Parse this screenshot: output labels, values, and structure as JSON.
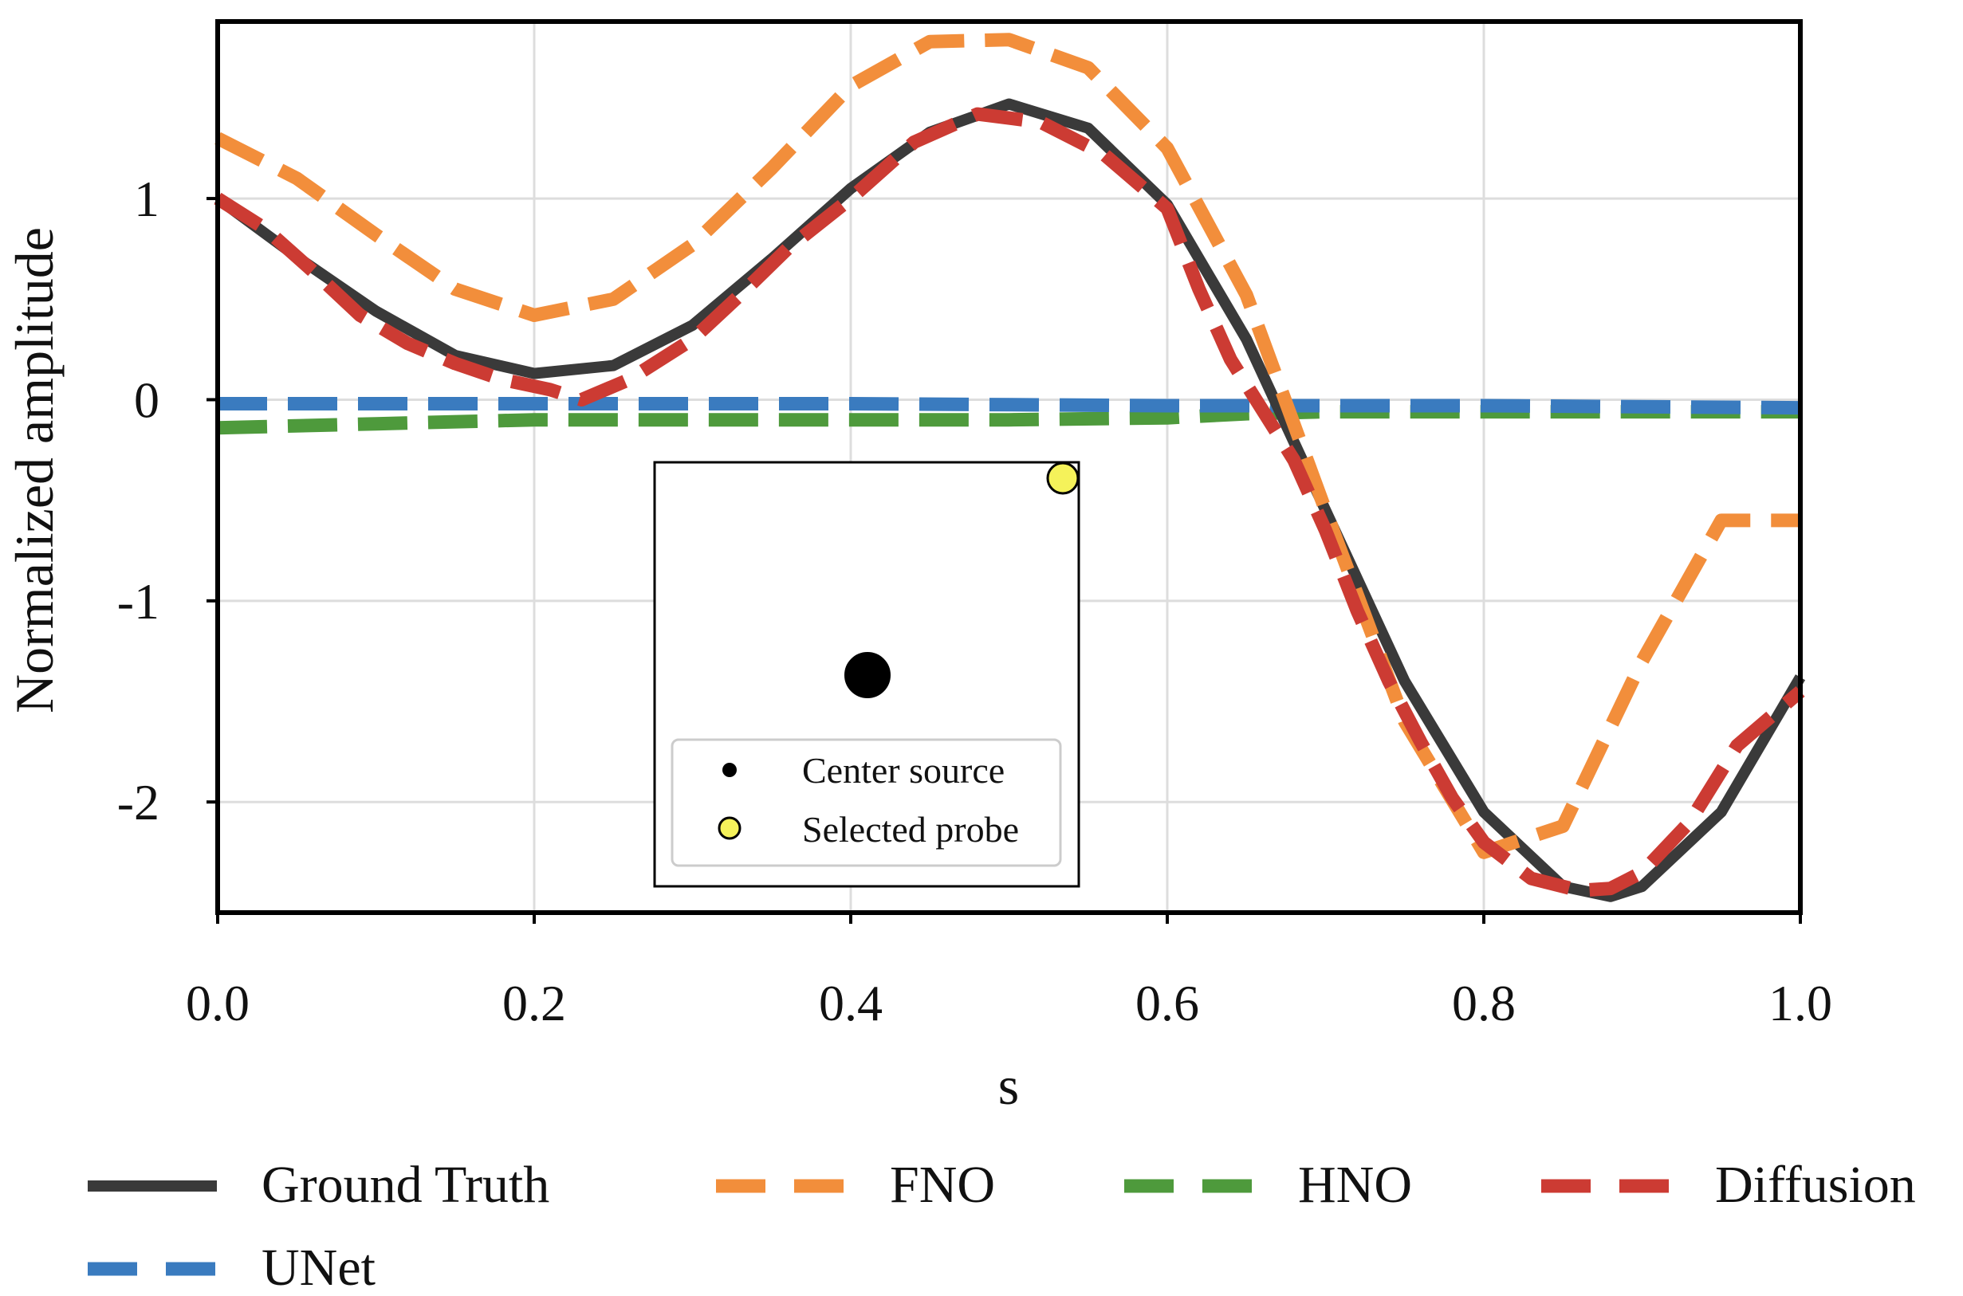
{
  "chart_data": {
    "type": "line",
    "xlabel": "s",
    "ylabel": "Normalized amplitude",
    "xlim": [
      0.0,
      1.0
    ],
    "ylim": [
      -2.55,
      1.88
    ],
    "xticks": [
      0.0,
      0.2,
      0.4,
      0.6,
      0.8,
      1.0
    ],
    "xtick_labels": [
      "0.0",
      "0.2",
      "0.4",
      "0.6",
      "0.8",
      "1.0"
    ],
    "yticks": [
      1,
      0,
      -1,
      -2
    ],
    "ytick_labels": [
      "1",
      "0",
      "-1",
      "-2"
    ],
    "grid": true,
    "legend_position": "bottom, outside plot area",
    "series": [
      {
        "name": "Ground Truth",
        "color": "#3a3a3a",
        "style": "solid",
        "x": [
          0.0,
          0.05,
          0.1,
          0.15,
          0.2,
          0.25,
          0.3,
          0.35,
          0.4,
          0.45,
          0.5,
          0.55,
          0.6,
          0.65,
          0.7,
          0.75,
          0.8,
          0.85,
          0.88,
          0.9,
          0.95,
          1.0
        ],
        "y": [
          1.0,
          0.71,
          0.44,
          0.22,
          0.13,
          0.17,
          0.37,
          0.7,
          1.05,
          1.33,
          1.47,
          1.35,
          0.97,
          0.3,
          -0.55,
          -1.4,
          -2.05,
          -2.42,
          -2.47,
          -2.42,
          -2.05,
          -1.38
        ]
      },
      {
        "name": "FNO",
        "color": "#f28e3b",
        "style": "dashed",
        "x": [
          0.0,
          0.05,
          0.1,
          0.15,
          0.2,
          0.25,
          0.3,
          0.35,
          0.4,
          0.45,
          0.5,
          0.55,
          0.6,
          0.65,
          0.7,
          0.75,
          0.8,
          0.85,
          0.9,
          0.95,
          1.0
        ],
        "y": [
          1.3,
          1.1,
          0.82,
          0.55,
          0.42,
          0.5,
          0.77,
          1.15,
          1.56,
          1.78,
          1.79,
          1.65,
          1.25,
          0.52,
          -0.55,
          -1.6,
          -2.25,
          -2.12,
          -1.3,
          -0.6,
          -0.6
        ]
      },
      {
        "name": "HNO",
        "color": "#4e9a3c",
        "style": "dashed",
        "x": [
          0.0,
          0.1,
          0.2,
          0.3,
          0.4,
          0.5,
          0.6,
          0.65,
          0.7,
          0.8,
          0.9,
          1.0
        ],
        "y": [
          -0.14,
          -0.12,
          -0.1,
          -0.1,
          -0.1,
          -0.1,
          -0.09,
          -0.07,
          -0.06,
          -0.06,
          -0.06,
          -0.06
        ]
      },
      {
        "name": "Diffusion",
        "color": "#cc3b33",
        "style": "dashed",
        "x": [
          0.0,
          0.03,
          0.06,
          0.09,
          0.12,
          0.15,
          0.18,
          0.21,
          0.23,
          0.26,
          0.3,
          0.33,
          0.36,
          0.4,
          0.44,
          0.48,
          0.52,
          0.56,
          0.6,
          0.62,
          0.64,
          0.66,
          0.68,
          0.7,
          0.72,
          0.74,
          0.76,
          0.78,
          0.8,
          0.83,
          0.86,
          0.88,
          0.9,
          0.93,
          0.96,
          1.0
        ],
        "y": [
          1.0,
          0.85,
          0.64,
          0.42,
          0.28,
          0.18,
          0.1,
          0.05,
          0.0,
          0.1,
          0.3,
          0.52,
          0.75,
          1.0,
          1.28,
          1.42,
          1.38,
          1.22,
          0.95,
          0.55,
          0.2,
          -0.05,
          -0.3,
          -0.65,
          -1.05,
          -1.4,
          -1.7,
          -1.98,
          -2.2,
          -2.38,
          -2.44,
          -2.43,
          -2.35,
          -2.1,
          -1.72,
          -1.45
        ]
      },
      {
        "name": "UNet",
        "color": "#3a7bbf",
        "style": "dashed",
        "x": [
          0.0,
          0.2,
          0.4,
          0.6,
          0.8,
          1.0
        ],
        "y": [
          -0.02,
          -0.02,
          -0.02,
          -0.03,
          -0.03,
          -0.04
        ]
      }
    ],
    "inset": {
      "points": [
        {
          "name": "Center source",
          "color": "#000000",
          "position": "center"
        },
        {
          "name": "Selected probe",
          "color": "#f5f25a",
          "position": "top-right"
        }
      ]
    }
  }
}
